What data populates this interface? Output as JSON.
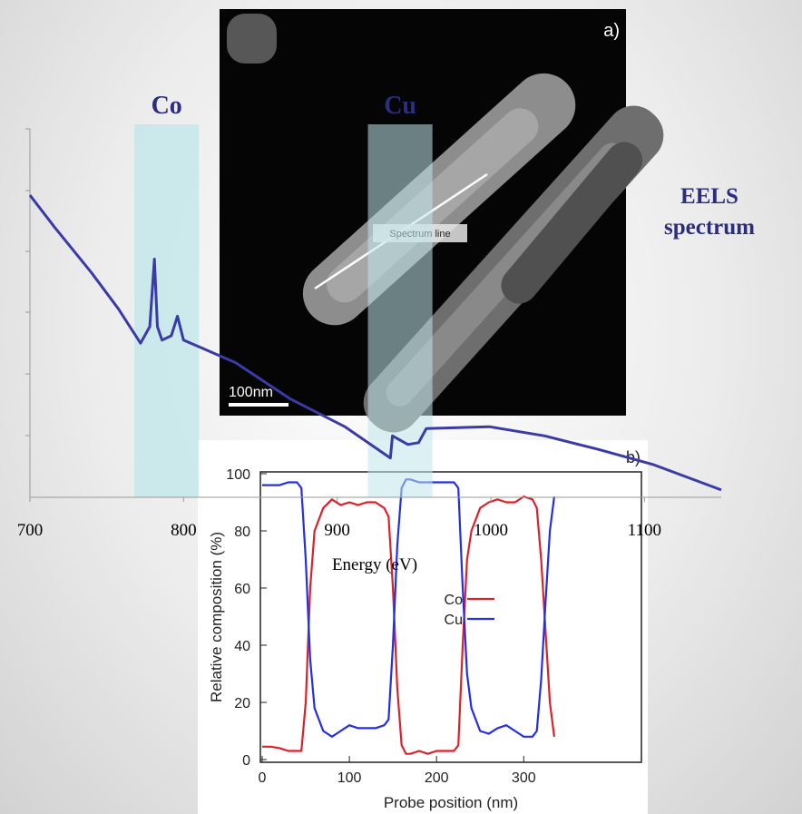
{
  "image": {
    "panel_label": "a)",
    "annotation": "Spectrum line",
    "scale_bar": "100nm"
  },
  "chart_data": [
    {
      "type": "line",
      "title": "EELS spectrum",
      "x_label": "Energy (eV)",
      "xlim": [
        700,
        1150
      ],
      "xticks": [
        700,
        800,
        900,
        1000,
        1100
      ],
      "ylim": [
        0,
        6
      ],
      "bands": [
        {
          "label": "Co",
          "range": [
            768,
            810
          ]
        },
        {
          "label": "Cu",
          "range": [
            920,
            962
          ]
        }
      ],
      "band_color": "#bfe6ea",
      "series": [
        {
          "name": "EELS spectrum",
          "color": "#3b3ba6",
          "x": [
            700,
            716,
            740,
            757.6,
            772,
            778,
            781,
            783,
            786,
            792,
            796,
            800,
            807.5,
            834,
            869.6,
            905,
            928.7,
            934.6,
            936,
            946,
            953,
            958,
            999,
            1035,
            1070,
            1106,
            1150
          ],
          "values": [
            4.92,
            4.4,
            3.66,
            3.07,
            2.51,
            2.78,
            3.88,
            2.78,
            2.56,
            2.63,
            2.95,
            2.56,
            2.48,
            2.19,
            1.6,
            1.15,
            0.74,
            0.64,
            1.0,
            0.86,
            0.89,
            1.12,
            1.15,
            1.0,
            0.78,
            0.53,
            0.12
          ]
        }
      ]
    },
    {
      "type": "line",
      "panel_label": "b)",
      "x_label": "Probe position (nm)",
      "y_label": "Relative composition (%)",
      "xlim": [
        0,
        435
      ],
      "xticks": [
        0,
        100,
        200,
        300
      ],
      "ylim": [
        0,
        100
      ],
      "yticks": [
        0,
        20,
        40,
        60,
        80,
        100
      ],
      "legend": "center right",
      "x": [
        0,
        10,
        20,
        30,
        40,
        45,
        50,
        55,
        60,
        70,
        80,
        90,
        100,
        110,
        120,
        130,
        140,
        145,
        150,
        155,
        160,
        165,
        170,
        180,
        190,
        200,
        210,
        220,
        225,
        230,
        235,
        240,
        250,
        260,
        270,
        280,
        290,
        300,
        310,
        315,
        320,
        325,
        330,
        335
      ],
      "series": [
        {
          "name": "Co",
          "color": "#d8232a",
          "values": [
            4.5,
            4.5,
            4,
            3,
            3,
            3,
            20,
            60,
            80,
            88,
            91,
            89,
            90,
            89,
            90,
            90,
            88,
            85,
            60,
            25,
            5,
            2,
            2,
            3,
            2,
            3,
            3,
            3,
            5,
            40,
            70,
            80,
            88,
            90,
            91,
            90,
            90,
            92,
            91,
            88,
            70,
            45,
            20,
            8
          ]
        },
        {
          "name": "Cu",
          "color": "#2430e0",
          "values": [
            96,
            96,
            96,
            97,
            97,
            95,
            70,
            35,
            18,
            10,
            8,
            10,
            12,
            11,
            11,
            11,
            12,
            14,
            40,
            75,
            95,
            98,
            98,
            97,
            97,
            97,
            97,
            97,
            95,
            60,
            30,
            18,
            10,
            9,
            11,
            12,
            10,
            8,
            8,
            10,
            28,
            55,
            80,
            92
          ]
        }
      ]
    }
  ]
}
